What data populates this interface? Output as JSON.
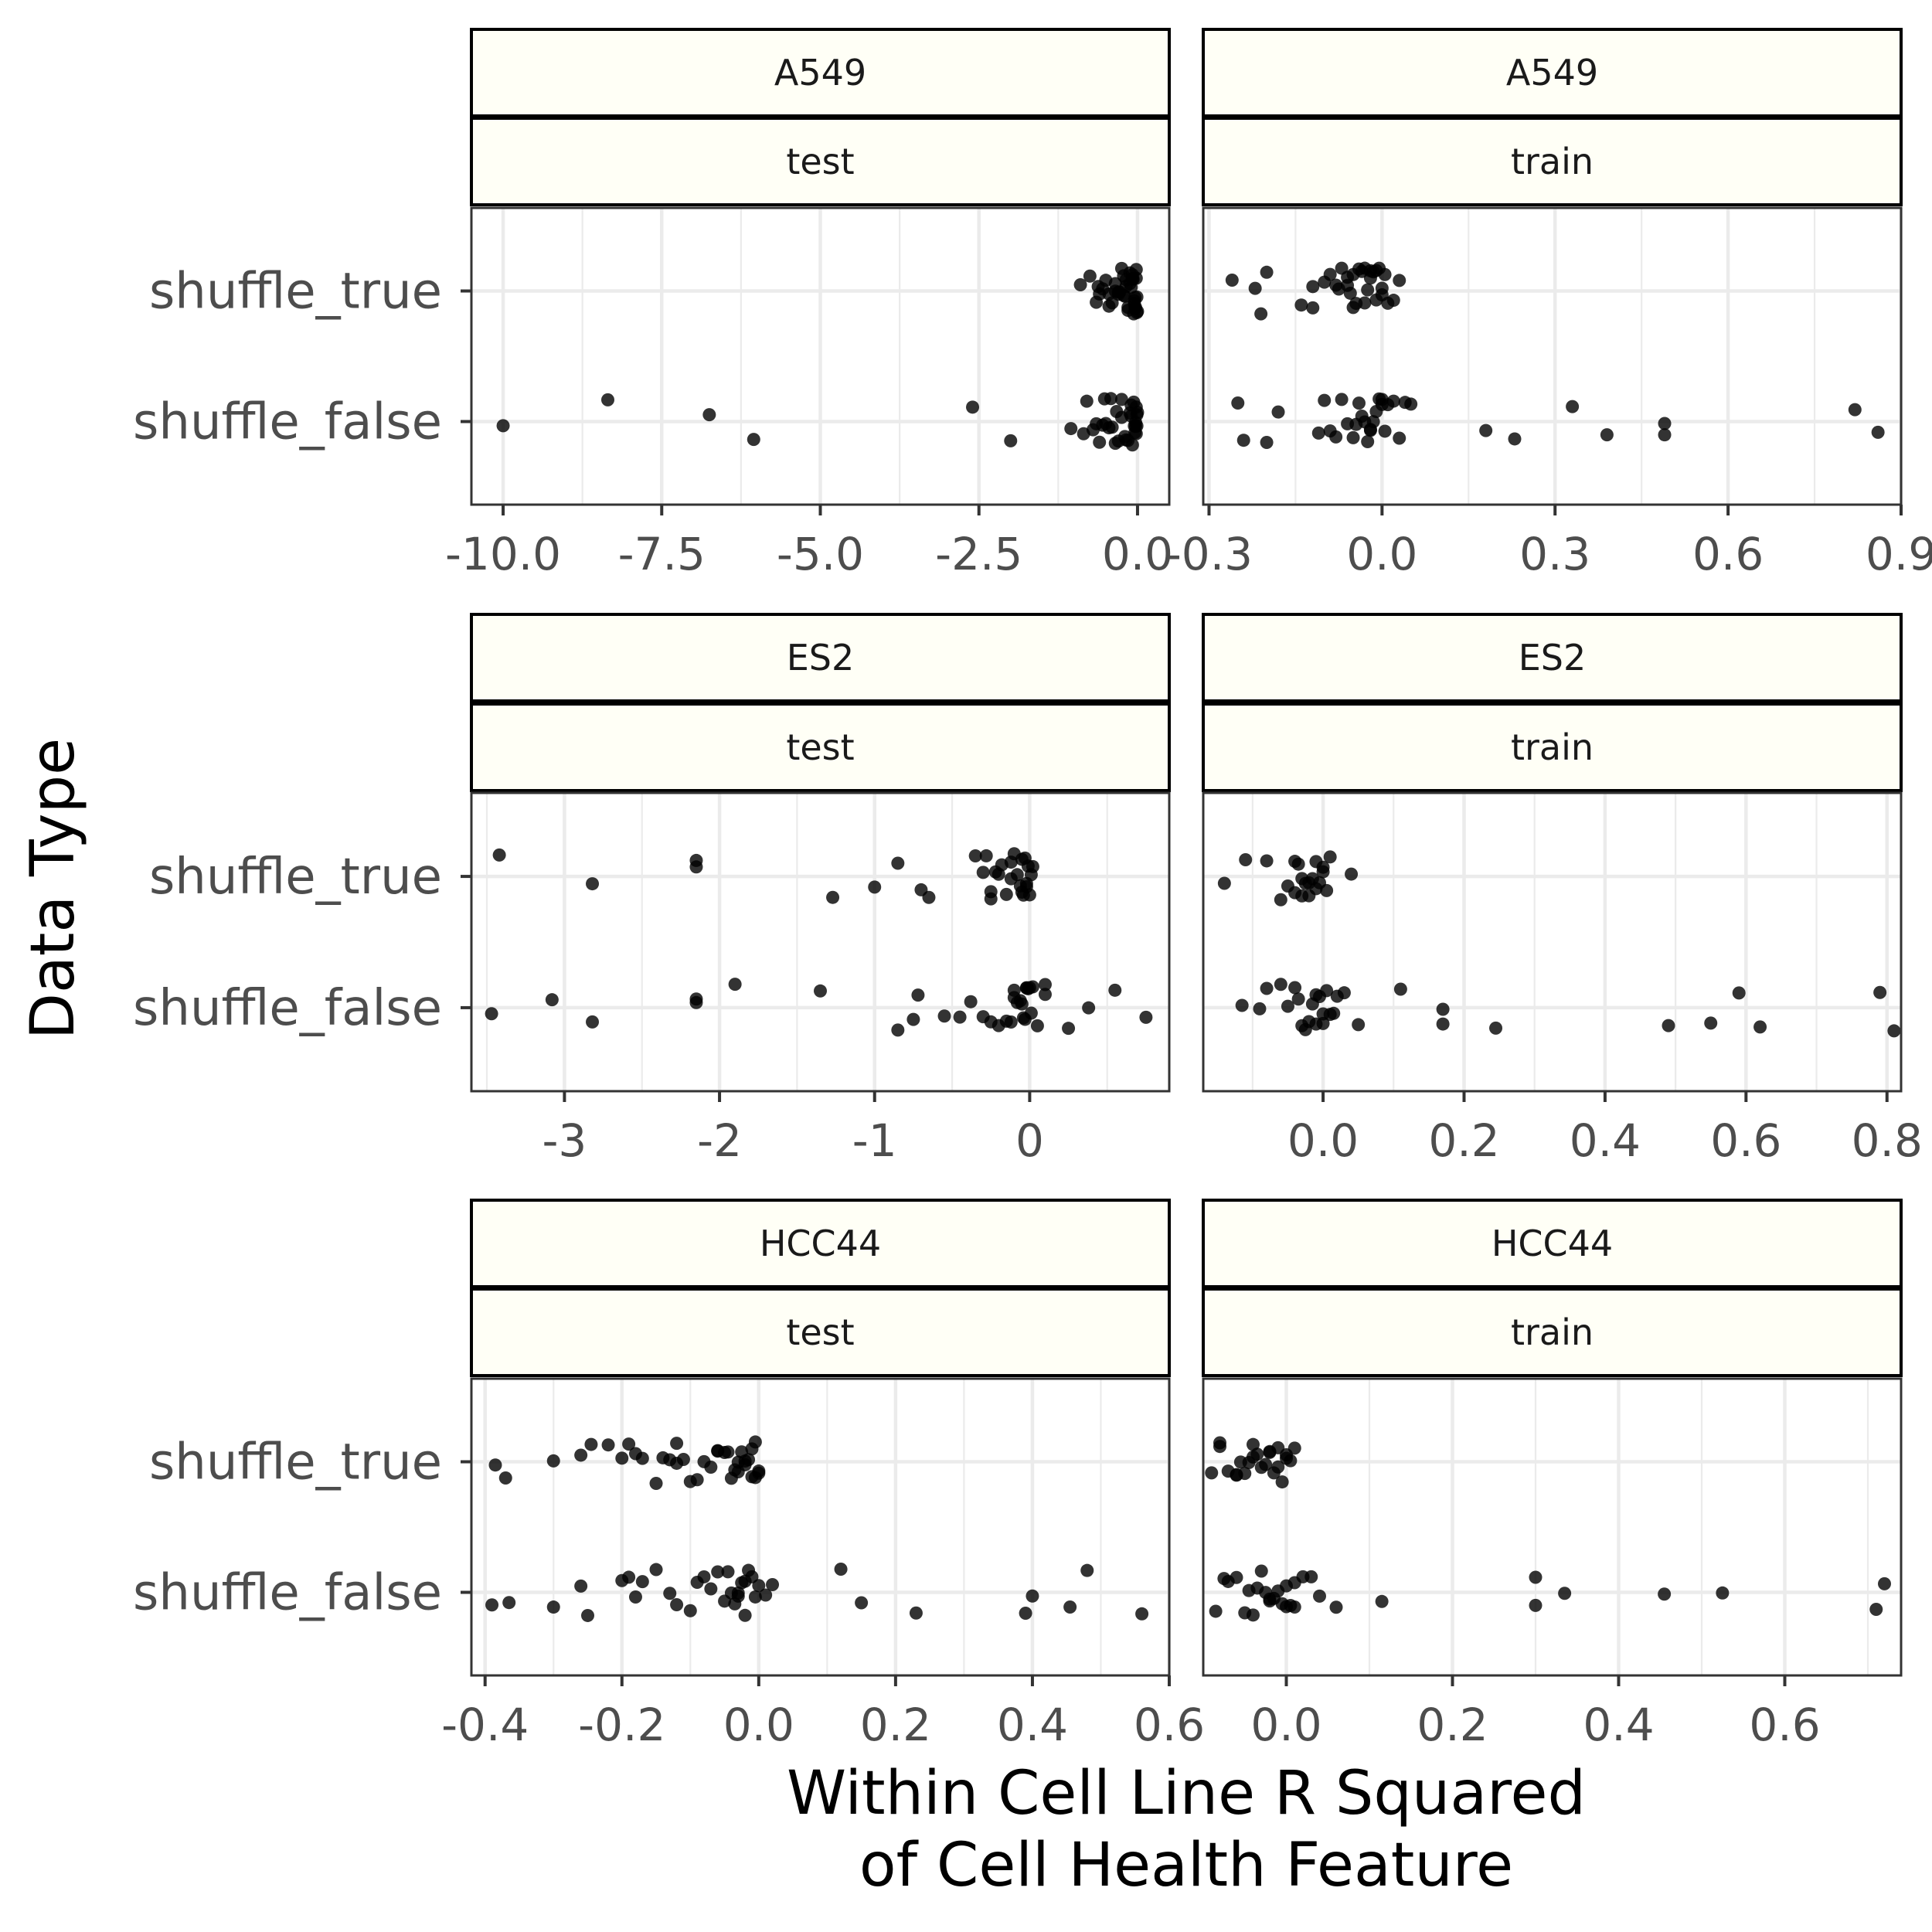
{
  "ylabel": "Data Type",
  "xlabel_lines": [
    "Within Cell Line R Squared",
    "of Cell Health Feature"
  ],
  "chart_data": {
    "type": "scatter",
    "title": "",
    "xlabel": "Within Cell Line R Squared of Cell Health Feature",
    "ylabel": "Data Type",
    "categories": [
      "shuffle_true",
      "shuffle_false"
    ],
    "grid": true,
    "legend": "none",
    "facets": [
      {
        "cell_line": "A549",
        "data_split": "test",
        "xlim": [
          -10.5,
          0.5
        ],
        "xticks": [
          -10,
          -7.5,
          -5,
          -2.5,
          0
        ],
        "xtick_labels": [
          "-10.0",
          "-7.5",
          "-5.0",
          "-2.5",
          "0.0"
        ],
        "points": {
          "shuffle_true": [
            -0.75,
            -0.65,
            -0.6,
            -0.55,
            -0.5,
            -0.45,
            -0.4,
            -0.35,
            -0.3,
            -0.28,
            -0.25,
            -0.22,
            -0.2,
            -0.18,
            -0.15,
            -0.12,
            -0.1,
            -0.08,
            -0.06,
            -0.05,
            -0.04,
            -0.03,
            -0.02,
            -0.01,
            0.0,
            -0.02,
            -0.05,
            -0.08,
            -0.15,
            -0.22,
            -0.35,
            -0.45,
            -0.9,
            -0.62,
            -0.3,
            -0.12,
            -0.04,
            -0.01,
            -0.07,
            -0.18
          ],
          "shuffle_false": [
            -10.0,
            -8.35,
            -6.75,
            -6.05,
            -2.6,
            -2.0,
            -1.05,
            -0.85,
            -0.8,
            -0.7,
            -0.6,
            -0.55,
            -0.5,
            -0.45,
            -0.4,
            -0.35,
            -0.3,
            -0.25,
            -0.2,
            -0.15,
            -0.12,
            -0.1,
            -0.08,
            -0.05,
            -0.04,
            -0.03,
            -0.02,
            -0.01,
            0.0,
            -0.02,
            -0.06,
            -0.1,
            -0.18,
            -0.25,
            -0.33,
            -0.42,
            -0.52,
            -0.65,
            -0.03,
            -0.01
          ]
        }
      },
      {
        "cell_line": "A549",
        "data_split": "train",
        "xlim": [
          -0.31,
          0.9
        ],
        "xticks": [
          -0.3,
          0,
          0.3,
          0.6,
          0.9
        ],
        "xtick_labels": [
          "-0.3",
          "0.0",
          "0.3",
          "0.6",
          "0.9"
        ],
        "points": {
          "shuffle_true": [
            -0.26,
            -0.21,
            -0.2,
            -0.22,
            -0.14,
            -0.12,
            -0.1,
            -0.09,
            -0.08,
            -0.075,
            -0.07,
            -0.06,
            -0.055,
            -0.05,
            -0.045,
            -0.04,
            -0.035,
            -0.03,
            -0.025,
            -0.02,
            -0.015,
            -0.01,
            -0.005,
            0.0,
            0.005,
            0.01,
            0.02,
            0.03,
            -0.02,
            -0.01,
            0.0,
            -0.03,
            -0.05,
            -0.06,
            -0.12
          ],
          "shuffle_false": [
            -0.24,
            -0.25,
            -0.2,
            -0.18,
            -0.1,
            -0.09,
            -0.08,
            -0.07,
            -0.06,
            -0.05,
            -0.045,
            -0.04,
            -0.035,
            -0.03,
            -0.025,
            -0.02,
            -0.015,
            -0.01,
            -0.005,
            0.0,
            0.005,
            0.01,
            0.02,
            0.03,
            0.04,
            0.05,
            0.18,
            0.23,
            0.33,
            0.39,
            0.49,
            0.49,
            0.82,
            0.86,
            -0.11,
            -0.02,
            0.0
          ]
        }
      },
      {
        "cell_line": "ES2",
        "data_split": "test",
        "xlim": [
          -3.6,
          0.9
        ],
        "xticks": [
          -3,
          -2,
          -1,
          0
        ],
        "xtick_labels": [
          "-3",
          "-2",
          "-1",
          "0"
        ],
        "points": {
          "shuffle_true": [
            -3.42,
            -2.82,
            -2.15,
            -2.15,
            -1.27,
            -1.0,
            -0.85,
            -0.7,
            -0.65,
            -0.35,
            -0.3,
            -0.28,
            -0.25,
            -0.22,
            -0.2,
            -0.18,
            -0.15,
            -0.12,
            -0.1,
            -0.08,
            -0.06,
            -0.05,
            -0.04,
            -0.03,
            -0.02,
            -0.01,
            0.0,
            0.01,
            0.02,
            -0.02,
            -0.05,
            -0.12,
            -0.25
          ],
          "shuffle_false": [
            -3.47,
            -3.08,
            -2.82,
            -2.15,
            -2.15,
            -1.9,
            -1.35,
            -0.85,
            -0.75,
            -0.72,
            -0.55,
            -0.45,
            -0.38,
            -0.3,
            -0.25,
            -0.2,
            -0.15,
            -0.12,
            -0.1,
            -0.08,
            -0.06,
            -0.05,
            -0.04,
            -0.03,
            -0.02,
            -0.01,
            0.0,
            0.01,
            0.02,
            0.05,
            0.1,
            0.25,
            0.38,
            0.55,
            0.75,
            0.1,
            -0.02,
            -0.1
          ]
        }
      },
      {
        "cell_line": "ES2",
        "data_split": "train",
        "xlim": [
          -0.17,
          0.82
        ],
        "xticks": [
          0,
          0.2,
          0.4,
          0.6,
          0.8
        ],
        "xtick_labels": [
          "0.0",
          "0.2",
          "0.4",
          "0.6",
          "0.8"
        ],
        "points": {
          "shuffle_true": [
            -0.14,
            -0.11,
            -0.08,
            -0.06,
            -0.05,
            -0.04,
            -0.035,
            -0.03,
            -0.025,
            -0.02,
            -0.015,
            -0.01,
            -0.005,
            0.0,
            0.005,
            0.01,
            0.04,
            -0.02,
            -0.01,
            0.0,
            -0.03,
            -0.04
          ],
          "shuffle_false": [
            -0.115,
            -0.08,
            -0.05,
            -0.04,
            -0.035,
            -0.03,
            -0.025,
            -0.02,
            -0.015,
            -0.01,
            -0.005,
            0.0,
            0.005,
            0.01,
            0.015,
            0.02,
            0.03,
            0.05,
            0.11,
            0.17,
            0.17,
            0.245,
            0.49,
            0.55,
            0.59,
            0.62,
            0.79,
            0.81,
            -0.09,
            -0.06,
            -0.01,
            0.0
          ]
        }
      },
      {
        "cell_line": "HCC44",
        "data_split": "test",
        "xlim": [
          -0.42,
          0.6
        ],
        "xticks": [
          -0.4,
          -0.2,
          0,
          0.2,
          0.4,
          0.6
        ],
        "xtick_labels": [
          "-0.4",
          "-0.2",
          "0.0",
          "0.2",
          "0.4",
          "0.6"
        ],
        "points": {
          "shuffle_true": [
            -0.385,
            -0.37,
            -0.3,
            -0.26,
            -0.245,
            -0.22,
            -0.2,
            -0.19,
            -0.18,
            -0.17,
            -0.15,
            -0.14,
            -0.13,
            -0.12,
            -0.11,
            -0.1,
            -0.09,
            -0.08,
            -0.07,
            -0.06,
            -0.05,
            -0.045,
            -0.04,
            -0.035,
            -0.03,
            -0.025,
            -0.02,
            -0.015,
            -0.01,
            -0.005,
            0.0,
            -0.02,
            -0.01,
            -0.005,
            0.0,
            -0.03,
            -0.06,
            -0.12
          ],
          "shuffle_false": [
            -0.39,
            -0.365,
            -0.3,
            -0.26,
            -0.25,
            -0.2,
            -0.19,
            -0.18,
            -0.17,
            -0.15,
            -0.13,
            -0.12,
            -0.1,
            -0.09,
            -0.08,
            -0.07,
            -0.06,
            -0.05,
            -0.045,
            -0.04,
            -0.035,
            -0.03,
            -0.025,
            -0.02,
            -0.015,
            -0.01,
            -0.005,
            0.0,
            0.01,
            0.02,
            0.12,
            0.15,
            0.23,
            0.39,
            0.4,
            0.455,
            0.48,
            0.56,
            -0.02,
            -0.03
          ]
        }
      },
      {
        "cell_line": "HCC44",
        "data_split": "train",
        "xlim": [
          -0.1,
          0.74
        ],
        "xticks": [
          0,
          0.2,
          0.4,
          0.6
        ],
        "xtick_labels": [
          "0.0",
          "0.2",
          "0.4",
          "0.6"
        ],
        "points": {
          "shuffle_true": [
            -0.09,
            -0.08,
            -0.07,
            -0.06,
            -0.055,
            -0.05,
            -0.045,
            -0.04,
            -0.035,
            -0.03,
            -0.025,
            -0.02,
            -0.015,
            -0.01,
            -0.005,
            0.0,
            0.005,
            0.01,
            -0.02,
            -0.01,
            0.0,
            -0.04,
            -0.06,
            -0.08
          ],
          "shuffle_false": [
            -0.085,
            -0.075,
            -0.06,
            -0.05,
            -0.045,
            -0.04,
            -0.035,
            -0.03,
            -0.025,
            -0.02,
            -0.015,
            -0.01,
            -0.005,
            0.0,
            0.005,
            0.01,
            0.02,
            0.03,
            0.04,
            0.06,
            0.115,
            0.3,
            0.3,
            0.335,
            0.455,
            0.525,
            0.71,
            0.72,
            -0.07,
            -0.02,
            0.0,
            0.01
          ]
        }
      }
    ]
  }
}
